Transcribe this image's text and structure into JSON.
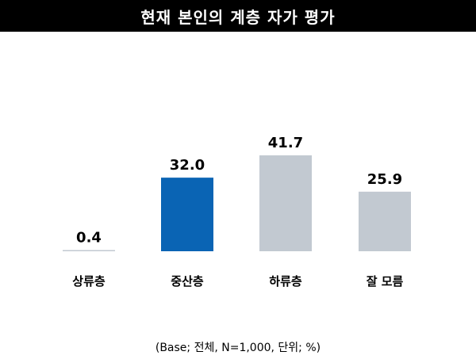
{
  "title": "현재 본인의 계층 자가 평가",
  "footnote": "(Base; 전체, N=1,000, 단위; %)",
  "colors": {
    "highlight": "#0a64b4",
    "default": "#c2c9d1",
    "title_bg": "#000000"
  },
  "chart_data": {
    "type": "bar",
    "categories": [
      "상류층",
      "중산층",
      "하류층",
      "잘 모름"
    ],
    "values": [
      0.4,
      32.0,
      41.7,
      25.9
    ],
    "value_labels": [
      "0.4",
      "32.0",
      "41.7",
      "25.9"
    ],
    "highlight_index": 1,
    "title": "현재 본인의 계층 자가 평가",
    "xlabel": "",
    "ylabel": "",
    "ylim": [
      0,
      41.7
    ],
    "grid": false,
    "legend": "none"
  }
}
